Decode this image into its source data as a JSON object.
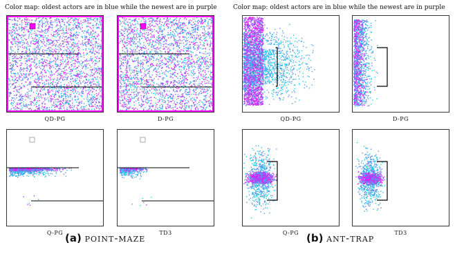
{
  "colormap_caption": "Color map: oldest actors are in blue while the newest are in purple",
  "colors": {
    "old": "#00e5e5",
    "new": "#ff00ff",
    "wall": "#000000"
  },
  "left_group": {
    "letter": "(a)",
    "name": "point-maze",
    "panels": [
      {
        "label": "QD-PG",
        "env": "maze",
        "spread": "full",
        "seed": 11
      },
      {
        "label": "D-PG",
        "env": "maze",
        "spread": "full",
        "seed": 23
      },
      {
        "label": "Q-PG",
        "env": "maze",
        "spread": "strip",
        "seed": 37
      },
      {
        "label": "TD3",
        "env": "maze",
        "spread": "strip_small",
        "seed": 41
      }
    ]
  },
  "right_group": {
    "letter": "(b)",
    "name": "ant-trap",
    "panels": [
      {
        "label": "QD-PG",
        "env": "trap",
        "spread": "wide",
        "seed": 53
      },
      {
        "label": "D-PG",
        "env": "trap",
        "spread": "left",
        "seed": 67
      },
      {
        "label": "Q-PG",
        "env": "trap",
        "spread": "cluster",
        "seed": 71
      },
      {
        "label": "TD3",
        "env": "trap",
        "spread": "cluster_small",
        "seed": 83
      }
    ]
  }
}
